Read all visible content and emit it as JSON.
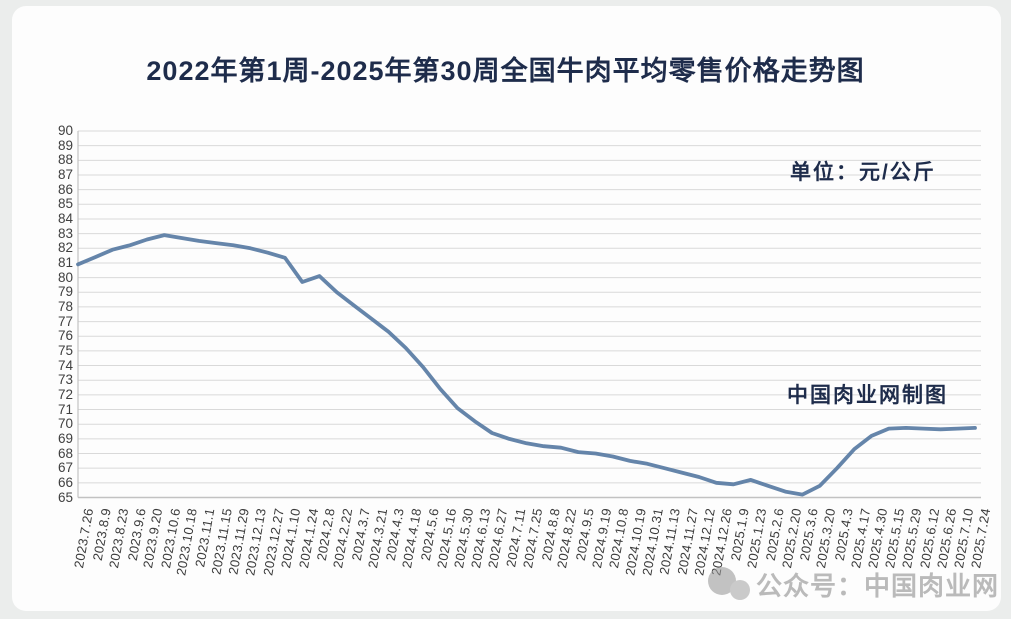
{
  "page": {
    "title": "2022年第1周-2025年第30周全国牛肉平均零售价格走势图"
  },
  "annotations": {
    "unit": "单位：元/公斤",
    "credit": "中国肉业网制图",
    "watermark": "公众号：中国肉业网"
  },
  "colors": {
    "line": "#587ba3",
    "grid": "#d9d9d9",
    "axis": "#c2c2c2",
    "title_navy": "#1e2c4b",
    "watermark_gray": "#8b8b8b"
  },
  "chart_data": {
    "type": "line",
    "title": "2022年第1周-2025年第30周全国牛肉平均零售价格走势图",
    "xlabel": "",
    "ylabel": "元/公斤",
    "ylim": [
      65,
      90
    ],
    "y_ticks": [
      90,
      89,
      88,
      87,
      86,
      85,
      84,
      83,
      82,
      81,
      80,
      79,
      78,
      77,
      76,
      75,
      74,
      73,
      72,
      71,
      70,
      69,
      68,
      67,
      66,
      65
    ],
    "grid": "horizontal",
    "legend": "none",
    "series_name": "全国牛肉平均零售价格",
    "categories": [
      "2023.7.26",
      "2023.8.9",
      "2023.8.23",
      "2023.9.6",
      "2023.9.20",
      "2023.10.6",
      "2023.10.18",
      "2023.11.1",
      "2023.11.15",
      "2023.11.29",
      "2023.12.13",
      "2023.12.27",
      "2024.1.10",
      "2024.1.24",
      "2024.2.8",
      "2024.2.22",
      "2024.3.7",
      "2024.3.21",
      "2024.4.3",
      "2024.4.18",
      "2024.5.6",
      "2024.5.16",
      "2024.5.30",
      "2024.6.13",
      "2024.6.27",
      "2024.7.11",
      "2024.7.25",
      "2024.8.8",
      "2024.8.22",
      "2024.9.5",
      "2024.9.19",
      "2024.10.8",
      "2024.10.19",
      "2024.10.31",
      "2024.11.13",
      "2024.11.27",
      "2024.12.12",
      "2024.12.26",
      "2025.1.9",
      "2025.1.23",
      "2025.2.6",
      "2025.2.20",
      "2025.3.6",
      "2025.3.20",
      "2025.4.3",
      "2025.4.17",
      "2025.4.30",
      "2025.5.15",
      "2025.5.29",
      "2025.6.12",
      "2025.6.26",
      "2025.7.10",
      "2025.7.24"
    ],
    "values": [
      80.9,
      81.4,
      81.9,
      82.2,
      82.6,
      82.9,
      82.7,
      82.5,
      82.35,
      82.2,
      82.0,
      81.7,
      81.35,
      79.7,
      80.1,
      79.0,
      78.1,
      77.2,
      76.3,
      75.2,
      73.9,
      72.4,
      71.1,
      70.2,
      69.4,
      69.0,
      68.7,
      68.5,
      68.4,
      68.1,
      68.0,
      67.8,
      67.5,
      67.3,
      67.0,
      66.7,
      66.4,
      66.0,
      65.9,
      66.2,
      65.8,
      65.4,
      65.2,
      65.8,
      67.0,
      68.3,
      69.2,
      69.7,
      69.75,
      69.7,
      69.65,
      69.7,
      69.75
    ]
  }
}
